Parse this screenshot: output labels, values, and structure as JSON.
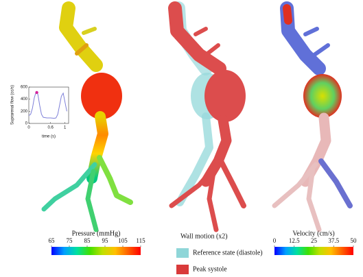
{
  "chart_data": {
    "type": "line",
    "x_label": "time (s)",
    "y_label": "Suprarenal flow (cc/s)",
    "x": [
      0,
      0.05,
      0.1,
      0.15,
      0.2,
      0.25,
      0.3,
      0.35,
      0.4,
      0.5,
      0.6,
      0.7,
      0.75,
      0.8,
      0.85,
      0.9,
      0.95,
      1.0,
      1.05
    ],
    "series": [
      {
        "color": "#7d7fd8",
        "values": [
          130,
          150,
          250,
          420,
          520,
          480,
          300,
          150,
          100,
          90,
          90,
          85,
          90,
          150,
          300,
          450,
          500,
          350,
          200
        ]
      }
    ],
    "xlim": [
      0,
      1.1
    ],
    "ylim": [
      0,
      600
    ],
    "xticks": [
      0,
      0.6,
      1
    ],
    "yticks": [
      0,
      200,
      400,
      600
    ],
    "marker": {
      "x": 0.22,
      "y": 510,
      "color": "#d4249c"
    }
  },
  "pressure": {
    "title": "Pressure (mmHg)",
    "ticks": [
      65,
      75,
      85,
      95,
      105,
      115
    ],
    "colors": [
      "#0000ff",
      "#00a0ff",
      "#00e0a0",
      "#40e000",
      "#c0e000",
      "#ffc000",
      "#ff6000",
      "#ff0000"
    ]
  },
  "wall_motion": {
    "title": "Wall motion (x2)",
    "legend": [
      {
        "label": "Reference state (diastole)",
        "color": "#8fd6d8"
      },
      {
        "label": "Peak systole",
        "color": "#d93a3a"
      }
    ]
  },
  "velocity": {
    "title": "Velocity (cm/s)",
    "ticks": [
      0,
      12.5,
      25,
      37.5,
      50
    ],
    "colors": [
      "#0000ff",
      "#00a0ff",
      "#00e0a0",
      "#40e000",
      "#c0e000",
      "#ffc000",
      "#ff6000",
      "#ff0000"
    ]
  }
}
